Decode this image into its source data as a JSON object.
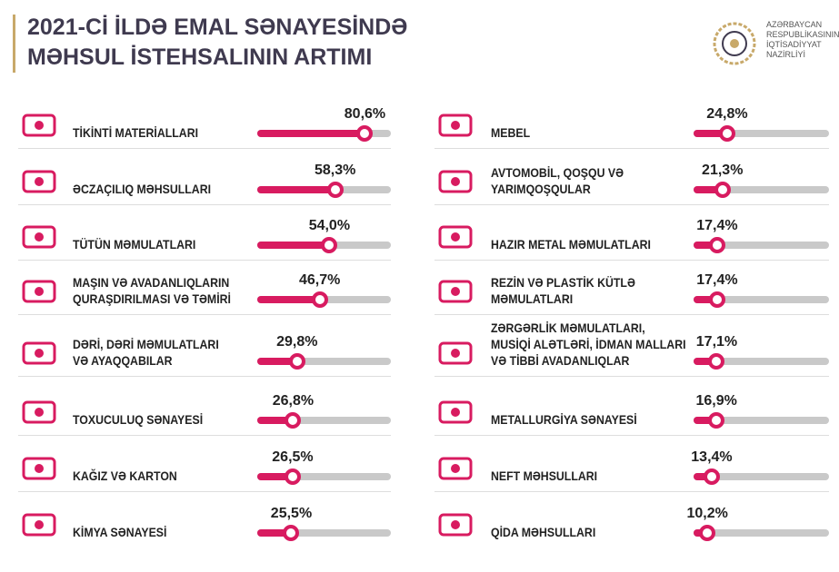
{
  "chart_data": {
    "type": "bar",
    "title": [
      "2021-Cİ İLDƏ EMAL SƏNAYESİNDƏ",
      "MƏHSUL İSTEHSALININ ARTIMI"
    ],
    "categories": [
      "TİKİNTİ MATERİALLARI",
      "ƏCZAÇILIQ MƏHSULLARI",
      "TÜTÜN MƏMULATLARI",
      "MAŞIN VƏ AVADANLIQLARIN\nQURAŞDIRILMASI VƏ TƏMİRİ",
      "DƏRİ, DƏRİ MƏMULATLARI\nVƏ AYAQQABILAR",
      "TOXUCULUQ SƏNAYESİ",
      "KAĞIZ VƏ KARTON",
      "KİMYA SƏNAYESİ",
      "MEBEL",
      "AVTOMOBİL, QOŞQU VƏ\nYARIMQOŞQULAR",
      "HAZIR METAL MƏMULATLARI",
      "REZİN VƏ PLASTİK KÜTLƏ\nMƏMULATLARI",
      "ZƏRGƏRLİK MƏMULATLARI,\nMUSİQİ ALƏTLƏRİ, İDMAN MALLARI\nVƏ TİBBİ AVADANLIQLAR",
      "METALLURGİYA SƏNAYESİ",
      "NEFT MƏHSULLARI",
      "QİDA MƏHSULLARI"
    ],
    "values": [
      80.6,
      58.3,
      54.0,
      46.7,
      29.8,
      26.8,
      26.5,
      25.5,
      24.8,
      21.3,
      17.4,
      17.4,
      17.1,
      16.9,
      13.4,
      10.2
    ],
    "value_labels": [
      "80,6%",
      "58,3%",
      "54,0%",
      "46,7%",
      "29,8%",
      "26,8%",
      "26,5%",
      "25,5%",
      "24,8%",
      "21,3%",
      "17,4%",
      "17,4%",
      "17,1%",
      "16,9%",
      "13,4%",
      "10,2%"
    ],
    "xlim": [
      0,
      100
    ],
    "color": "#d81b60",
    "track_color": "#c9c9c9"
  },
  "logo": {
    "lines": [
      "AZƏRBAYCAN",
      "RESPUBLİKASININ",
      "İQTİSADİYYAT",
      "NAZİRLİYİ"
    ]
  }
}
